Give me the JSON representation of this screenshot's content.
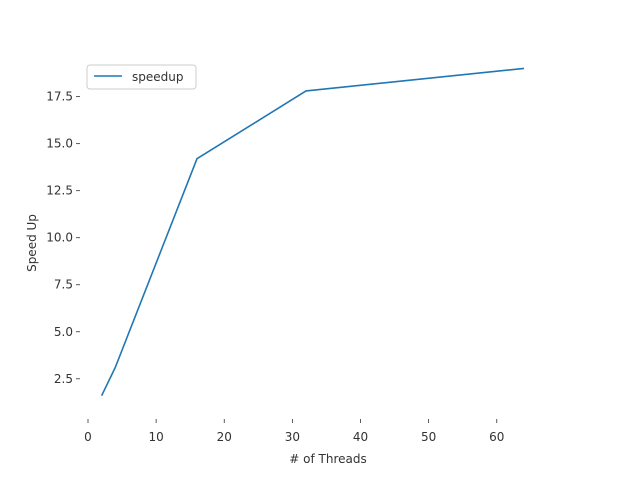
{
  "chart_data": {
    "type": "line",
    "title": "",
    "xlabel": "# of Threads",
    "ylabel": "Speed Up",
    "xlim": [
      0,
      64
    ],
    "ylim": [
      1.0,
      19.5
    ],
    "xticks": [
      0,
      10,
      20,
      30,
      40,
      50,
      60
    ],
    "yticks": [
      2.5,
      5.0,
      7.5,
      10.0,
      12.5,
      15.0,
      17.5
    ],
    "xtick_labels": [
      "0",
      "10",
      "20",
      "30",
      "40",
      "50",
      "60"
    ],
    "ytick_labels": [
      "2.5",
      "5.0",
      "7.5",
      "10.0",
      "12.5",
      "15.0",
      "17.5"
    ],
    "grid": false,
    "legend_position": "upper-left",
    "series": [
      {
        "name": "speedup",
        "color": "#1f77b4",
        "x": [
          2,
          4,
          16,
          32,
          64
        ],
        "y": [
          1.6,
          3.1,
          14.2,
          17.8,
          19.0
        ]
      }
    ]
  }
}
